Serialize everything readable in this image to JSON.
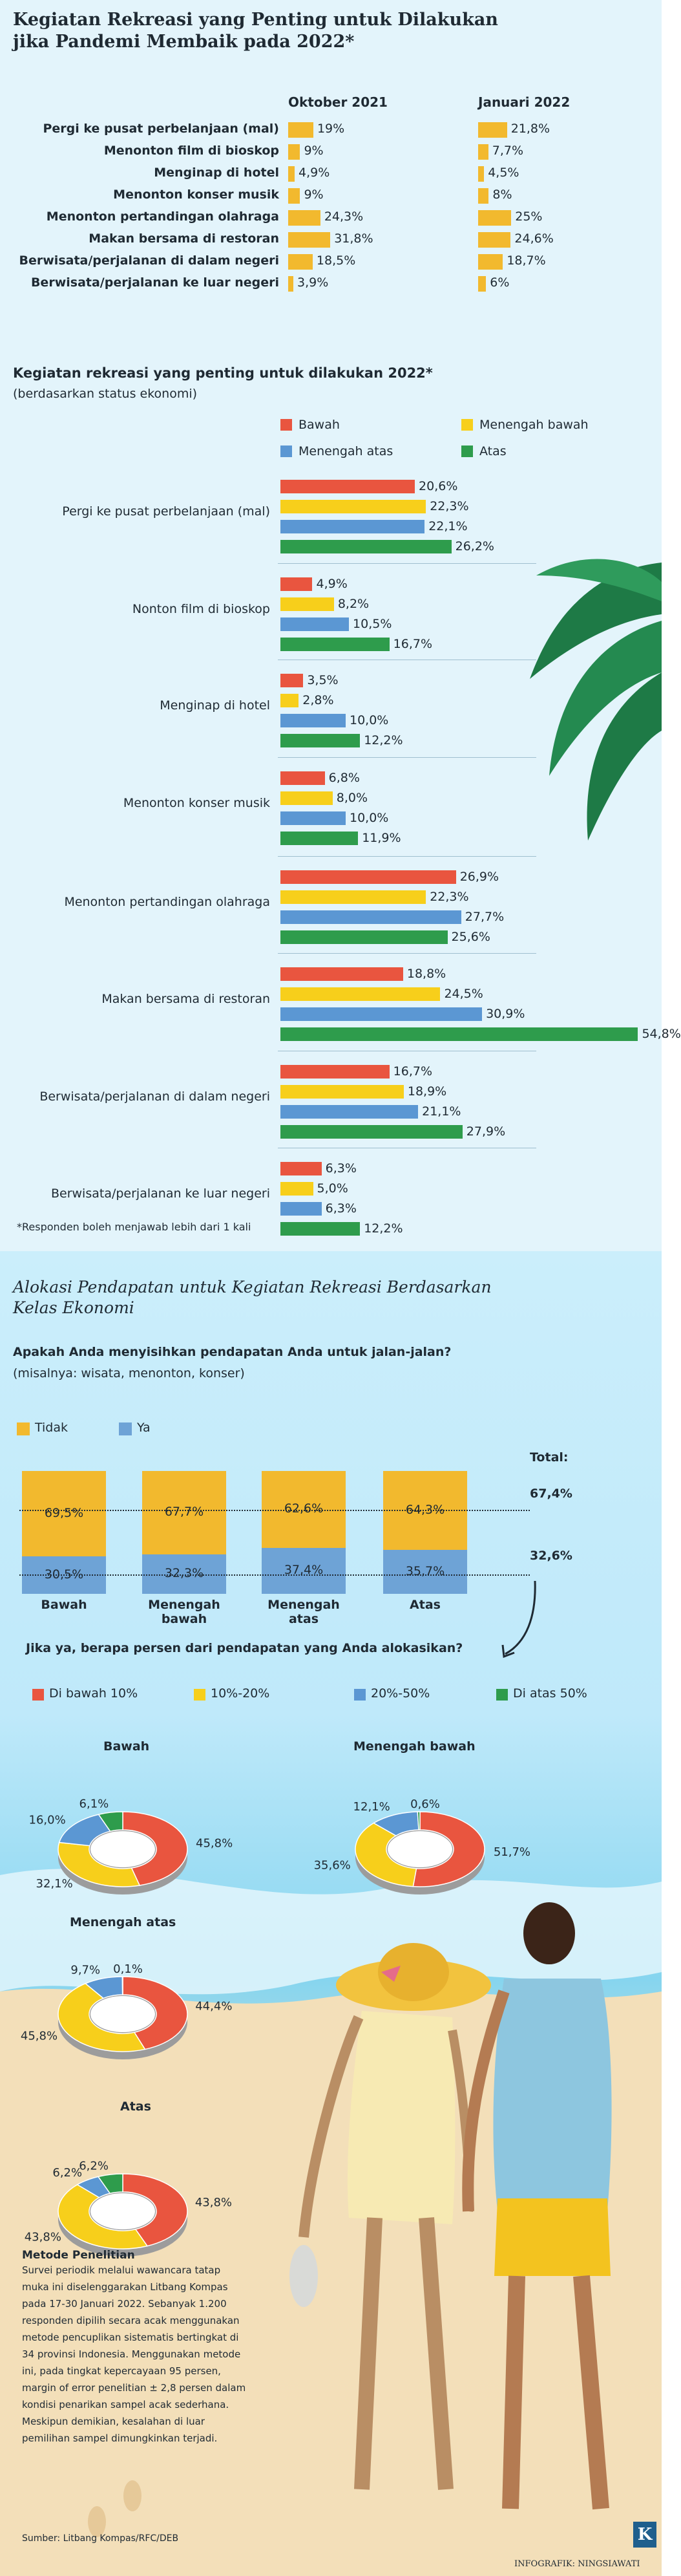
{
  "section1": {
    "title_line1": "Kegiatan Rekreasi yang Penting untuk Dilakukan",
    "title_line2": "jika Pandemi Membaik pada 2022*",
    "col_oct": "Oktober 2021",
    "col_jan": "Januari 2022"
  },
  "section2": {
    "title": "Kegiatan rekreasi yang penting untuk dilakukan 2022*",
    "subtitle": "(berdasarkan status ekonomi)",
    "footnote": "*Responden boleh menjawab lebih dari 1 kali"
  },
  "section3": {
    "title_line1": "Alokasi Pendapatan untuk Kegiatan Rekreasi Berdasarkan",
    "title_line2": "Kelas Ekonomi",
    "question": "Apakah Anda menyisihkan pendapatan Anda untuk jalan-jalan?",
    "question_sub": "(misalnya: wisata, menonton, konser)",
    "legend_tidak": "Tidak",
    "legend_ya": "Ya",
    "total_label": "Total:",
    "question2": "Jika ya, berapa persen dari pendapatan yang Anda alokasikan?"
  },
  "method": {
    "title": "Metode Penelitian",
    "lines": [
      "Survei periodik melalui wawancara tatap",
      "muka ini diselenggarakan Litbang Kompas",
      "pada 17-30 Januari 2022. Sebanyak 1.200",
      "responden dipilih secara acak menggunakan",
      "metode pencuplikan sistematis bertingkat di",
      "34 provinsi Indonesia. Menggunakan metode",
      "ini, pada tingkat kepercayaan 95 persen,",
      "margin of error penelitian ± 2,8 persen dalam",
      "kondisi penarikan sampel acak sederhana.",
      "Meskipun demikian, kesalahan di luar",
      "pemilihan sampel dimungkinkan terjadi."
    ],
    "source": "Sumber: Litbang Kompas/RFC/DEB"
  },
  "credit": "INFOGRAFIK: NINGSIAWATI",
  "logo_letter": "K",
  "colors": {
    "yellow": "#f2b92e",
    "bawah": "#e9553f",
    "menengah_bawah": "#f7cf1b",
    "menengah_atas": "#5b97d3",
    "atas": "#2e9c4c",
    "ya_blue": "#6ea3d6",
    "donut_gray": "#b7b7b7"
  },
  "chart_data": [
    {
      "type": "bar",
      "orientation": "horizontal",
      "categories": [
        "Pergi ke pusat perbelanjaan (mal)",
        "Menonton film di bioskop",
        "Menginap di hotel",
        "Menonton konser musik",
        "Menonton pertandingan olahraga",
        "Makan bersama di restoran",
        "Berwisata/perjalanan di dalam negeri",
        "Berwisata/perjalanan ke luar negeri"
      ],
      "series": [
        {
          "name": "Oktober 2021",
          "values": [
            19,
            9,
            4.9,
            9,
            24.3,
            31.8,
            18.5,
            3.9
          ],
          "labels": [
            "19%",
            "9%",
            "4,9%",
            "9%",
            "24,3%",
            "31,8%",
            "18,5%",
            "3,9%"
          ]
        },
        {
          "name": "Januari 2022",
          "values": [
            21.8,
            7.7,
            4.5,
            8,
            25,
            24.6,
            18.7,
            6
          ],
          "labels": [
            "21,8%",
            "7,7%",
            "4,5%",
            "8%",
            "25%",
            "24,6%",
            "18,7%",
            "6%"
          ]
        }
      ]
    },
    {
      "type": "bar",
      "orientation": "horizontal",
      "categories": [
        "Pergi ke pusat perbelanjaan (mal)",
        "Nonton film di bioskop",
        "Menginap di hotel",
        "Menonton konser musik",
        "Menonton pertandingan olahraga",
        "Makan bersama di restoran",
        "Berwisata/perjalanan di dalam negeri",
        "Berwisata/perjalanan ke luar negeri"
      ],
      "series": [
        {
          "name": "Bawah",
          "values": [
            20.6,
            4.9,
            3.5,
            6.8,
            26.9,
            18.8,
            16.7,
            6.3
          ],
          "labels": [
            "20,6%",
            "4,9%",
            "3,5%",
            "6,8%",
            "26,9%",
            "18,8%",
            "16,7%",
            "6,3%"
          ]
        },
        {
          "name": "Menengah bawah",
          "values": [
            22.3,
            8.2,
            2.8,
            8.0,
            22.3,
            24.5,
            18.9,
            5.0
          ],
          "labels": [
            "22,3%",
            "8,2%",
            "2,8%",
            "8,0%",
            "22,3%",
            "24,5%",
            "18,9%",
            "5,0%"
          ]
        },
        {
          "name": "Menengah atas",
          "values": [
            22.1,
            10.5,
            10.0,
            10.0,
            27.7,
            30.9,
            21.1,
            6.3
          ],
          "labels": [
            "22,1%",
            "10,5%",
            "10,0%",
            "10,0%",
            "27,7%",
            "30,9%",
            "21,1%",
            "6,3%"
          ]
        },
        {
          "name": "Atas",
          "values": [
            26.2,
            16.7,
            12.2,
            11.9,
            25.6,
            54.8,
            27.9,
            12.2
          ],
          "labels": [
            "26,2%",
            "16,7%",
            "12,2%",
            "11,9%",
            "25,6%",
            "54,8%",
            "27,9%",
            "12,2%"
          ]
        }
      ]
    },
    {
      "type": "bar",
      "stacked": true,
      "categories": [
        "Bawah",
        "Menengah bawah",
        "Menengah atas",
        "Atas"
      ],
      "series": [
        {
          "name": "Tidak",
          "values": [
            69.5,
            67.7,
            62.6,
            64.3
          ],
          "labels": [
            "69,5%",
            "67,7%",
            "62,6%",
            "64,3%"
          ]
        },
        {
          "name": "Ya",
          "values": [
            30.5,
            32.3,
            37.4,
            35.7
          ],
          "labels": [
            "30,5%",
            "32,3%",
            "37,4%",
            "35,7%"
          ]
        }
      ],
      "totals": {
        "Tidak": "67,4%",
        "Ya": "32,6%"
      }
    },
    {
      "type": "pie",
      "donut": true,
      "slice_names": [
        "Di bawah 10%",
        "10%-20%",
        "20%-50%",
        "Di atas 50%"
      ],
      "charts": [
        {
          "name": "Bawah",
          "values": [
            45.8,
            32.1,
            16.0,
            6.1
          ],
          "labels": [
            "45,8%",
            "32,1%",
            "16,0%",
            "6,1%"
          ]
        },
        {
          "name": "Menengah bawah",
          "values": [
            51.7,
            35.6,
            12.1,
            0.6
          ],
          "labels": [
            "51,7%",
            "35,6%",
            "12,1%",
            "0,6%"
          ]
        },
        {
          "name": "Menengah atas",
          "values": [
            44.4,
            45.8,
            9.7,
            0.1
          ],
          "labels": [
            "44,4%",
            "45,8%",
            "9,7%",
            "0,1%"
          ]
        },
        {
          "name": "Atas",
          "values": [
            43.8,
            43.8,
            6.2,
            6.2
          ],
          "labels": [
            "43,8%",
            "43,8%",
            "6,2%",
            "6,2%"
          ]
        }
      ]
    }
  ]
}
